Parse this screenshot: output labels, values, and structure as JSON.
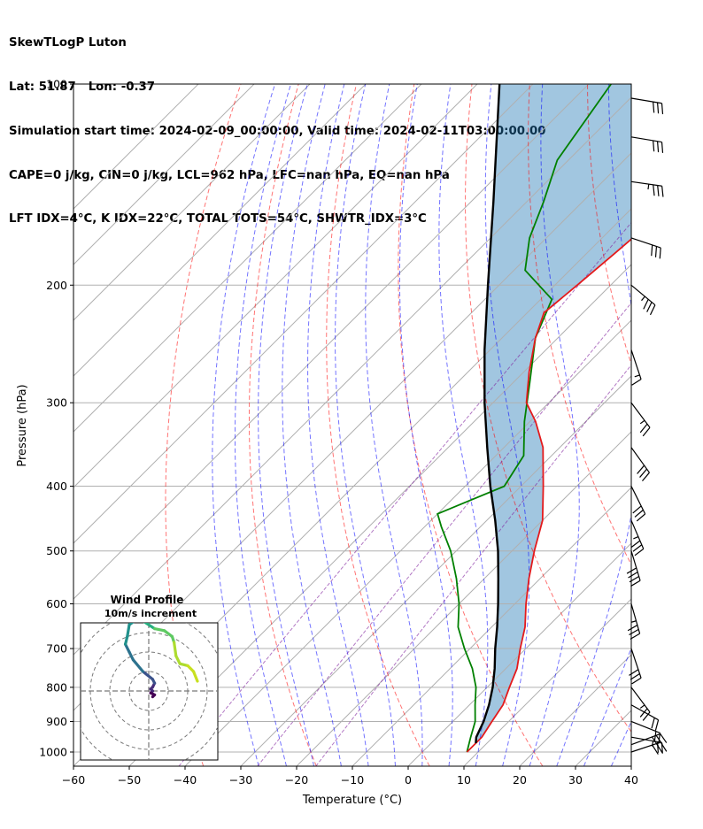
{
  "header": {
    "line1": "SkewTLogP Luton",
    "line2": "Lat: 51.87   Lon: -0.37",
    "line3": "Simulation start time: 2024-02-09_00:00:00, Valid time: 2024-02-11T03:00:00.00",
    "line4": "CAPE=0 j/kg, CIN=0 j/kg, LCL=962 hPa, LFC=nan hPa, EQ=nan hPa",
    "line5": "LFT IDX=4°C, K IDX=22°C, TOTAL TOTS=54°C, SHWTR_IDX=3°C"
  },
  "chart_data": {
    "type": "line",
    "subtype": "skew-t log-p",
    "xlabel": "Temperature (°C)",
    "ylabel": "Pressure (hPa)",
    "xlim": [
      -60,
      40
    ],
    "ylim": [
      1050,
      100
    ],
    "y_scale": "log",
    "grid": true,
    "x_ticks": [
      "−60",
      "−50",
      "−40",
      "−30",
      "−20",
      "−10",
      "0",
      "10",
      "20",
      "30",
      "40"
    ],
    "y_ticks": [
      "1000",
      "900",
      "800",
      "700",
      "600",
      "500",
      "400",
      "300",
      "200",
      "100"
    ],
    "series": [
      {
        "role": "temperature",
        "color": "#e41a1c",
        "points": [
          [
            1000,
            8
          ],
          [
            950,
            8
          ],
          [
            900,
            7
          ],
          [
            850,
            6
          ],
          [
            800,
            4
          ],
          [
            750,
            2
          ],
          [
            700,
            -1
          ],
          [
            650,
            -4
          ],
          [
            600,
            -8
          ],
          [
            550,
            -12
          ],
          [
            500,
            -16
          ],
          [
            450,
            -20
          ],
          [
            400,
            -26
          ],
          [
            350,
            -33
          ],
          [
            320,
            -39
          ],
          [
            300,
            -44
          ],
          [
            270,
            -49
          ],
          [
            240,
            -54
          ],
          [
            220,
            -57
          ],
          [
            200,
            -56
          ],
          [
            180,
            -55
          ],
          [
            160,
            -54
          ],
          [
            140,
            -53
          ],
          [
            120,
            -52
          ],
          [
            100,
            -50
          ]
        ]
      },
      {
        "role": "dewpoint",
        "color": "#008000",
        "points": [
          [
            1000,
            8
          ],
          [
            950,
            6
          ],
          [
            900,
            4
          ],
          [
            850,
            1
          ],
          [
            800,
            -2
          ],
          [
            750,
            -6
          ],
          [
            700,
            -11
          ],
          [
            650,
            -16
          ],
          [
            600,
            -20
          ],
          [
            550,
            -25
          ],
          [
            500,
            -31
          ],
          [
            460,
            -37
          ],
          [
            440,
            -40
          ],
          [
            400,
            -33
          ],
          [
            360,
            -35
          ],
          [
            320,
            -41
          ],
          [
            280,
            -47
          ],
          [
            240,
            -54
          ],
          [
            210,
            -58
          ],
          [
            190,
            -68
          ],
          [
            170,
            -73
          ],
          [
            150,
            -77
          ],
          [
            130,
            -82
          ],
          [
            100,
            -86
          ]
        ]
      },
      {
        "role": "parcel",
        "color": "#000000",
        "points": [
          [
            970,
            8
          ],
          [
            950,
            7
          ],
          [
            900,
            5.5
          ],
          [
            850,
            3.5
          ],
          [
            800,
            1
          ],
          [
            750,
            -2
          ],
          [
            700,
            -5.5
          ],
          [
            650,
            -9
          ],
          [
            600,
            -13
          ],
          [
            550,
            -17.5
          ],
          [
            500,
            -22.5
          ],
          [
            450,
            -28.5
          ],
          [
            400,
            -35.5
          ],
          [
            350,
            -43
          ],
          [
            300,
            -51.5
          ],
          [
            250,
            -61
          ],
          [
            200,
            -72
          ],
          [
            150,
            -86
          ],
          [
            120,
            -97
          ],
          [
            100,
            -106
          ]
        ]
      }
    ],
    "wind_barbs": [
      {
        "p": 1000,
        "u": -30,
        "v": -10
      },
      {
        "p": 975,
        "u": -32,
        "v": -12
      },
      {
        "p": 950,
        "u": -28,
        "v": 5
      },
      {
        "p": 900,
        "u": -20,
        "v": 8
      },
      {
        "p": 850,
        "u": -18,
        "v": 10
      },
      {
        "p": 800,
        "u": -15,
        "v": 20
      },
      {
        "p": 700,
        "u": -10,
        "v": 30
      },
      {
        "p": 600,
        "u": -10,
        "v": 35
      },
      {
        "p": 500,
        "u": -12,
        "v": 40
      },
      {
        "p": 450,
        "u": -15,
        "v": 35
      },
      {
        "p": 400,
        "u": -15,
        "v": 30
      },
      {
        "p": 350,
        "u": -18,
        "v": 25
      },
      {
        "p": 300,
        "u": -15,
        "v": 20
      },
      {
        "p": 250,
        "u": -5,
        "v": 15
      },
      {
        "p": 200,
        "u": -30,
        "v": 25
      },
      {
        "p": 170,
        "u": -30,
        "v": 10
      },
      {
        "p": 140,
        "u": -35,
        "v": 5
      },
      {
        "p": 120,
        "u": -30,
        "v": 5
      },
      {
        "p": 105,
        "u": -30,
        "v": 5
      }
    ],
    "inset": {
      "title": "Wind Profile",
      "subtitle": "10m/s increment",
      "hodograph": [
        [
          2,
          -3
        ],
        [
          3,
          -2
        ],
        [
          1,
          -1
        ],
        [
          2,
          0
        ],
        [
          1,
          1
        ],
        [
          2,
          2
        ],
        [
          3,
          4
        ],
        [
          2,
          6
        ],
        [
          -3,
          10
        ],
        [
          -8,
          16
        ],
        [
          -10,
          20
        ],
        [
          -12,
          24
        ],
        [
          -11,
          28
        ],
        [
          -10,
          34
        ],
        [
          -6,
          37
        ],
        [
          -3,
          36
        ],
        [
          3,
          32
        ],
        [
          8,
          31
        ],
        [
          12,
          28
        ],
        [
          13,
          25
        ],
        [
          14,
          18
        ],
        [
          16,
          14
        ],
        [
          20,
          13
        ],
        [
          23,
          10
        ],
        [
          25,
          5
        ]
      ]
    }
  }
}
